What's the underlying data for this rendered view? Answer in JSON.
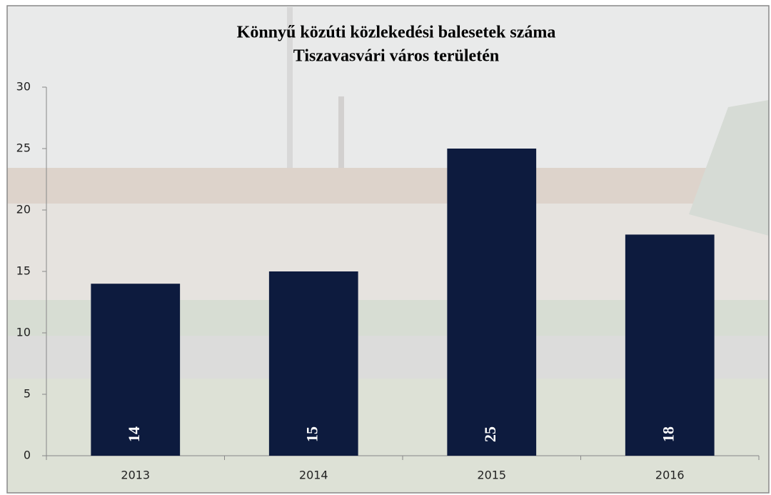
{
  "chart_data": {
    "type": "bar",
    "title": [
      "Könnyű közúti közlekedési balesetek száma",
      "Tiszavasvári város területén"
    ],
    "categories": [
      "2013",
      "2014",
      "2015",
      "2016"
    ],
    "values": [
      14,
      15,
      25,
      18
    ],
    "color": "#0d1b3e",
    "ylim": [
      0,
      30
    ],
    "yticks": [
      0,
      5,
      10,
      15,
      20,
      25,
      30
    ],
    "value_labels_color": "#ffffff"
  }
}
